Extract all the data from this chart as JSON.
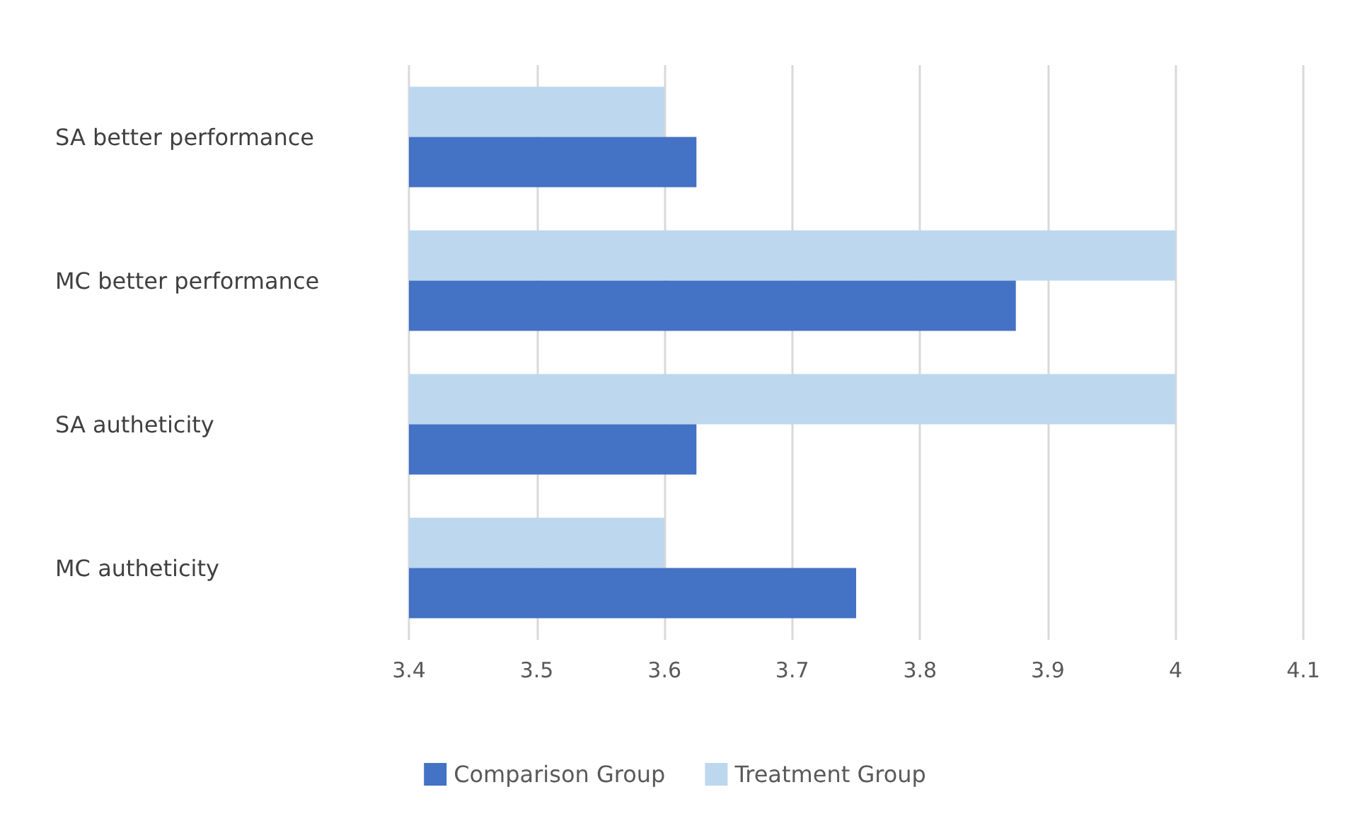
{
  "chart_data": {
    "type": "bar",
    "orientation": "horizontal",
    "categories": [
      "SA better performance",
      "MC better performance",
      "SA autheticity",
      "MC autheticity"
    ],
    "series": [
      {
        "name": "Comparison Group",
        "color": "#4472c4",
        "values": [
          3.625,
          3.875,
          3.625,
          3.75
        ]
      },
      {
        "name": "Treatment Group",
        "color": "#bdd7ee",
        "values": [
          3.6,
          4,
          4,
          3.6
        ]
      }
    ],
    "xlim": [
      3.4,
      4.1
    ],
    "xticks": [
      3.4,
      3.5,
      3.6,
      3.7,
      3.8,
      3.9,
      4,
      4.1
    ],
    "grid": "x",
    "legend": "bottom"
  }
}
